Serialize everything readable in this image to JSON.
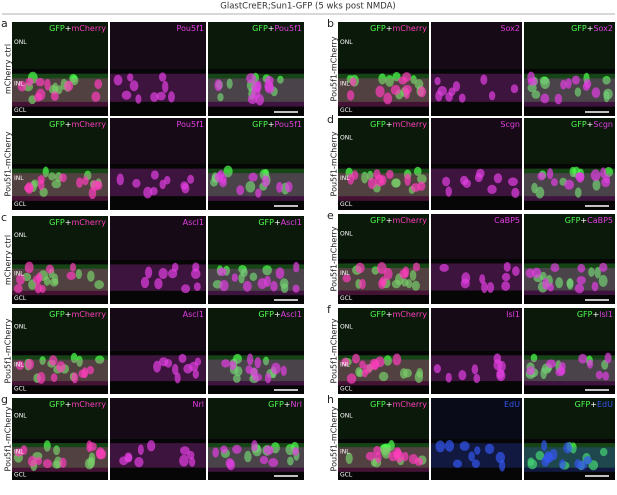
{
  "title": "GlastCreER;Sun1-GFP (5 wks post NMDA)",
  "columns": [
    {
      "rows": [
        {
          "letter": "a",
          "label": "mCherry ctrl",
          "layers": [
            "ONL",
            "INL",
            "GCL"
          ],
          "images": [
            [
              {
                "text": "GFP",
                "color": "#4dff4d"
              },
              {
                "text": "+",
                "color": "#ffffff"
              },
              {
                "text": "mCherry",
                "color": "#ff3dbe"
              }
            ],
            [
              {
                "text": "Pou5f1",
                "color": "#e23ee2"
              }
            ],
            [
              {
                "text": "GFP",
                "color": "#4dff4d"
              },
              {
                "text": "+",
                "color": "#ffffff"
              },
              {
                "text": "Pou5f1",
                "color": "#e23ee2"
              }
            ]
          ]
        },
        {
          "label": "Pou5f1-mCherry",
          "layers": [
            "INL",
            "GCL"
          ],
          "images": [
            [
              {
                "text": "GFP",
                "color": "#4dff4d"
              },
              {
                "text": "+",
                "color": "#ffffff"
              },
              {
                "text": "mCherry",
                "color": "#ff3dbe"
              }
            ],
            [
              {
                "text": "Pou5f1",
                "color": "#e23ee2"
              }
            ],
            [
              {
                "text": "GFP",
                "color": "#4dff4d"
              },
              {
                "text": "+",
                "color": "#ffffff"
              },
              {
                "text": "Pou5f1",
                "color": "#e23ee2"
              }
            ]
          ]
        },
        {
          "letter": "c",
          "label": "mCherry ctrl",
          "layers": [
            "ONL",
            "INL",
            "GCL"
          ],
          "images": [
            [
              {
                "text": "GFP",
                "color": "#4dff4d"
              },
              {
                "text": "+",
                "color": "#ffffff"
              },
              {
                "text": "mCherry",
                "color": "#ff3dbe"
              }
            ],
            [
              {
                "text": "Ascl1",
                "color": "#e23ee2"
              }
            ],
            [
              {
                "text": "GFP",
                "color": "#4dff4d"
              },
              {
                "text": "+",
                "color": "#ffffff"
              },
              {
                "text": "Ascl1",
                "color": "#e23ee2"
              }
            ]
          ]
        },
        {
          "label": "Pou5f1-mCherry",
          "layers": [
            "ONL",
            "INL",
            "GCL"
          ],
          "images": [
            [
              {
                "text": "GFP",
                "color": "#4dff4d"
              },
              {
                "text": "+",
                "color": "#ffffff"
              },
              {
                "text": "mCherry",
                "color": "#ff3dbe"
              }
            ],
            [
              {
                "text": "Ascl1",
                "color": "#e23ee2"
              }
            ],
            [
              {
                "text": "GFP",
                "color": "#4dff4d"
              },
              {
                "text": "+",
                "color": "#ffffff"
              },
              {
                "text": "Ascl1",
                "color": "#e23ee2"
              }
            ]
          ]
        },
        {
          "letter": "g",
          "label": "Pou5f1-mCherry",
          "layers": [
            "ONL",
            "INL",
            "GCL"
          ],
          "images": [
            [
              {
                "text": "GFP",
                "color": "#4dff4d"
              },
              {
                "text": "+",
                "color": "#ffffff"
              },
              {
                "text": "mCherry",
                "color": "#ff3dbe"
              }
            ],
            [
              {
                "text": "Nrl",
                "color": "#e23ee2"
              }
            ],
            [
              {
                "text": "GFP",
                "color": "#4dff4d"
              },
              {
                "text": "+",
                "color": "#ffffff"
              },
              {
                "text": "Nrl",
                "color": "#e23ee2"
              }
            ]
          ]
        }
      ]
    },
    {
      "rows": [
        {
          "letter": "b",
          "label": "Pou5f1-mCherry",
          "layers": [
            "ONL",
            "INL",
            "GCL"
          ],
          "images": [
            [
              {
                "text": "GFP",
                "color": "#4dff4d"
              },
              {
                "text": "+",
                "color": "#ffffff"
              },
              {
                "text": "mCherry",
                "color": "#ff3dbe"
              }
            ],
            [
              {
                "text": "Sox2",
                "color": "#e23ee2"
              }
            ],
            [
              {
                "text": "GFP",
                "color": "#4dff4d"
              },
              {
                "text": "+",
                "color": "#ffffff"
              },
              {
                "text": "Sox2",
                "color": "#e23ee2"
              }
            ]
          ]
        },
        {
          "letter": "d",
          "label": "Pou5f1-mCherry",
          "layers": [
            "ONL",
            "INL",
            "GCL"
          ],
          "images": [
            [
              {
                "text": "GFP",
                "color": "#4dff4d"
              },
              {
                "text": "+",
                "color": "#ffffff"
              },
              {
                "text": "mCherry",
                "color": "#ff3dbe"
              }
            ],
            [
              {
                "text": "Scgn",
                "color": "#e23ee2"
              }
            ],
            [
              {
                "text": "GFP",
                "color": "#4dff4d"
              },
              {
                "text": "+",
                "color": "#ffffff"
              },
              {
                "text": "Scgn",
                "color": "#e23ee2"
              }
            ]
          ]
        },
        {
          "letter": "e",
          "label": "Pou5f1-mCherry",
          "layers": [
            "ONL",
            "INL",
            "GCL"
          ],
          "images": [
            [
              {
                "text": "GFP",
                "color": "#4dff4d"
              },
              {
                "text": "+",
                "color": "#ffffff"
              },
              {
                "text": "mCherry",
                "color": "#ff3dbe"
              }
            ],
            [
              {
                "text": "CaBP5",
                "color": "#e23ee2"
              }
            ],
            [
              {
                "text": "GFP",
                "color": "#4dff4d"
              },
              {
                "text": "+",
                "color": "#ffffff"
              },
              {
                "text": "CaBP5",
                "color": "#e23ee2"
              }
            ]
          ]
        },
        {
          "letter": "f",
          "label": "Pou5f1-mCherry",
          "layers": [
            "ONL",
            "INL",
            "GCL"
          ],
          "images": [
            [
              {
                "text": "GFP",
                "color": "#4dff4d"
              },
              {
                "text": "+",
                "color": "#ffffff"
              },
              {
                "text": "mCherry",
                "color": "#ff3dbe"
              }
            ],
            [
              {
                "text": "Isl1",
                "color": "#e23ee2"
              }
            ],
            [
              {
                "text": "GFP",
                "color": "#4dff4d"
              },
              {
                "text": "+",
                "color": "#ffffff"
              },
              {
                "text": "Isl1",
                "color": "#e23ee2"
              }
            ]
          ]
        },
        {
          "letter": "h",
          "label": "Pou5f1-mCherry",
          "layers": [
            "ONL",
            "INL",
            "GCL"
          ],
          "images": [
            [
              {
                "text": "GFP",
                "color": "#4dff4d"
              },
              {
                "text": "+",
                "color": "#ffffff"
              },
              {
                "text": "mCherry",
                "color": "#ff3dbe"
              }
            ],
            [
              {
                "text": "EdU",
                "color": "#3355ee"
              }
            ],
            [
              {
                "text": "GFP",
                "color": "#4dff4d"
              },
              {
                "text": "+",
                "color": "#ffffff"
              },
              {
                "text": "EdU",
                "color": "#3355ee"
              }
            ]
          ]
        }
      ]
    }
  ]
}
